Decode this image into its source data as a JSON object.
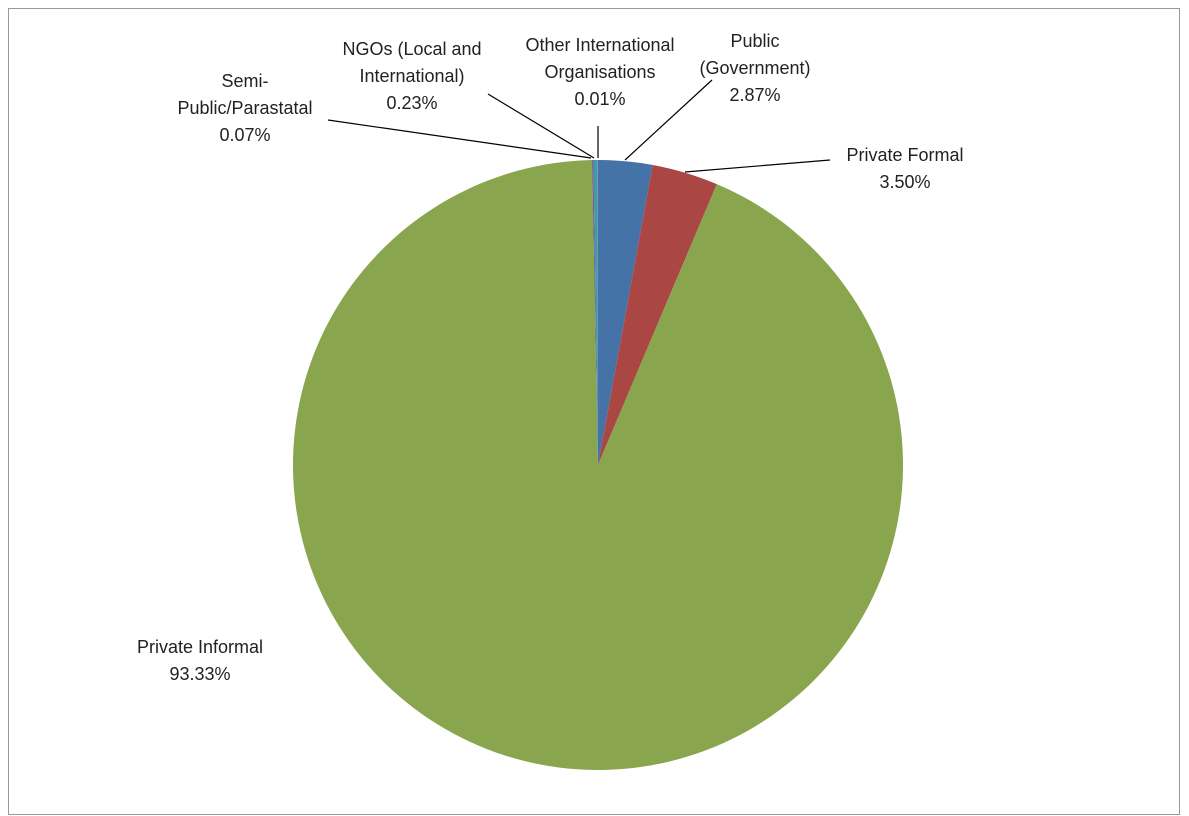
{
  "chart_data": {
    "type": "pie",
    "categories": [
      "Public (Government)",
      "Private Formal",
      "Private Informal",
      "Semi-Public/Parastatal",
      "NGOs (Local and International)",
      "Other International Organisations"
    ],
    "values": [
      2.87,
      3.5,
      93.33,
      0.07,
      0.23,
      0.01
    ],
    "value_labels": [
      "2.87%",
      "3.50%",
      "93.33%",
      "0.07%",
      "0.23%",
      "0.01%"
    ],
    "colors": [
      "#4572a7",
      "#aa4643",
      "#89a54e",
      "#71588f",
      "#4198af",
      "#db843d"
    ]
  }
}
